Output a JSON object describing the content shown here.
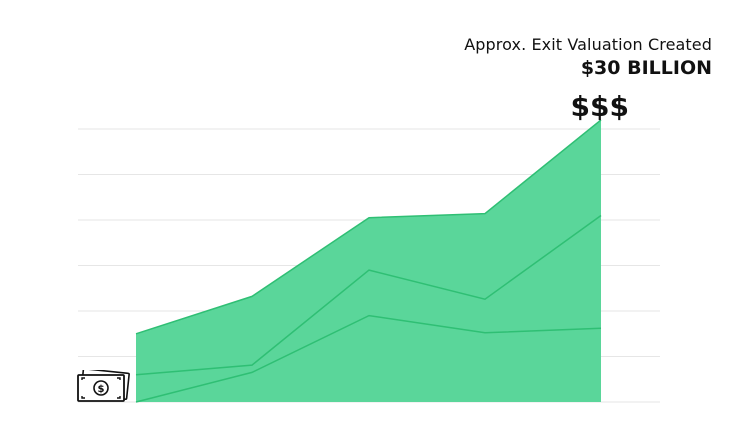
{
  "annotation": {
    "caption": "Approx. Exit Valuation Created",
    "value": "$30 BILLION",
    "symbol": "$$$"
  },
  "icons": {
    "start": "money-bill-icon"
  },
  "colors": {
    "fill": "#5ad69a",
    "line": "#2fbf74",
    "grid": "#e6e6e6"
  },
  "chart_data": {
    "type": "area",
    "grid": true,
    "x": [
      1,
      2,
      3,
      4,
      5
    ],
    "ylim": [
      0,
      6
    ],
    "series": [
      {
        "values": [
          0,
          0.65,
          1.9,
          1.52,
          1.62
        ]
      },
      {
        "values": [
          0.6,
          0.81,
          2.9,
          2.26,
          4.1
        ]
      },
      {
        "values": [
          1.5,
          2.32,
          4.05,
          4.14,
          6.2
        ]
      }
    ]
  }
}
